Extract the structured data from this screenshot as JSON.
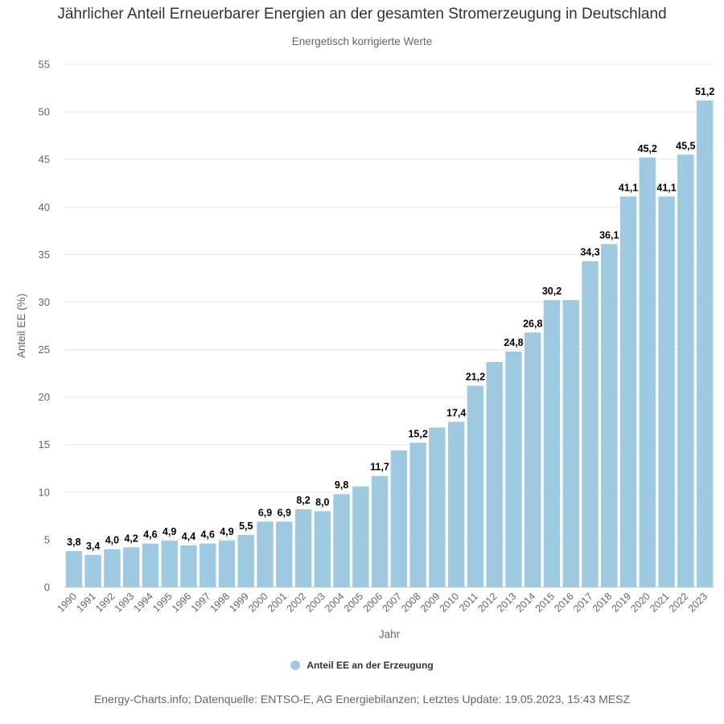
{
  "chart_data": {
    "type": "bar",
    "title": "Jährlicher Anteil Erneuerbarer Energien an der gesamten Stromerzeugung in Deutschland",
    "subtitle": "Energetisch korrigierte Werte",
    "xlabel": "Jahr",
    "ylabel": "Anteil EE (%)",
    "ylim": [
      0,
      55
    ],
    "yticks": [
      "0",
      "5",
      "10",
      "15",
      "20",
      "25",
      "30",
      "35",
      "40",
      "45",
      "50",
      "55"
    ],
    "grid": true,
    "legend_position": "bottom-center",
    "categories": [
      "1990",
      "1991",
      "1992",
      "1993",
      "1994",
      "1995",
      "1996",
      "1997",
      "1998",
      "1999",
      "2000",
      "2001",
      "2002",
      "2003",
      "2004",
      "2005",
      "2006",
      "2007",
      "2008",
      "2009",
      "2010",
      "2011",
      "2012",
      "2013",
      "2014",
      "2015",
      "2016",
      "2017",
      "2018",
      "2019",
      "2020",
      "2021",
      "2022",
      "2023"
    ],
    "series": [
      {
        "name": "Anteil EE an der Erzeugung",
        "color": "#9ecae1",
        "values": [
          3.8,
          3.4,
          4.0,
          4.2,
          4.6,
          4.9,
          4.4,
          4.6,
          4.9,
          5.5,
          6.9,
          6.9,
          8.2,
          8.0,
          9.8,
          10.6,
          11.7,
          14.4,
          15.2,
          16.8,
          17.4,
          21.2,
          23.7,
          24.8,
          26.8,
          30.2,
          30.2,
          34.3,
          36.1,
          41.1,
          45.2,
          41.1,
          45.5,
          51.2
        ]
      }
    ],
    "data_labels": [
      "3,8",
      "3,4",
      "4,0",
      "4,2",
      "4,6",
      "4,9",
      "4,4",
      "4,6",
      "4,9",
      "5,5",
      "6,9",
      "6,9",
      "8,2",
      "8,0",
      "9,8",
      "",
      "11,7",
      "",
      "15,2",
      "",
      "17,4",
      "21,2",
      "",
      "24,8",
      "26,8",
      "30,2",
      "",
      "34,3",
      "36,1",
      "41,1",
      "45,2",
      "41,1",
      "45,5",
      "51,2"
    ]
  },
  "footer": {
    "source": "Energy-Charts.info; Datenquelle: ENTSO-E, AG Energiebilanzen; Letztes Update: 19.05.2023, 15:43 MESZ"
  }
}
